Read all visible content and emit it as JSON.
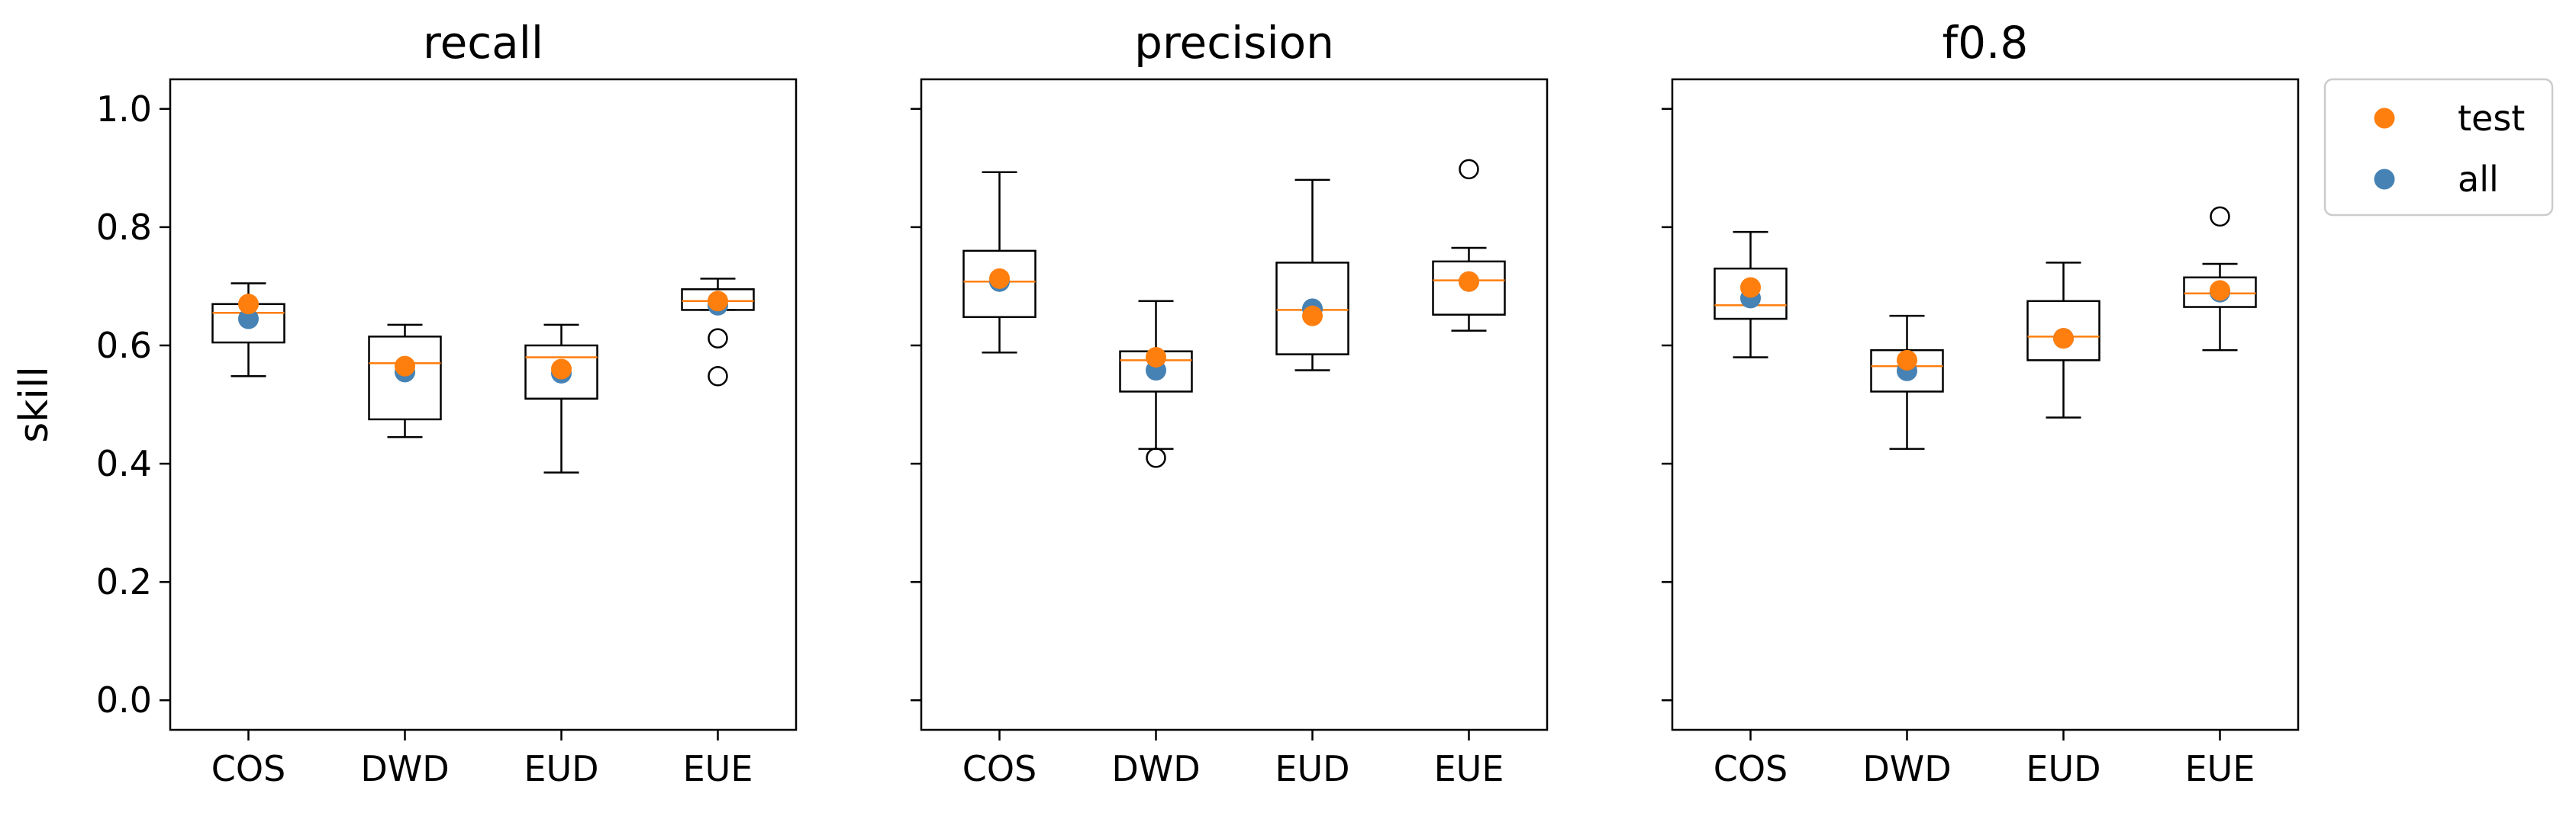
{
  "chart_data": {
    "type": "box",
    "shared_ylabel": "skill",
    "ylim": [
      -0.05,
      1.05
    ],
    "yticks": [
      0.0,
      0.2,
      0.4,
      0.6,
      0.8,
      1.0
    ],
    "ytick_labels": [
      "0.0",
      "0.2",
      "0.4",
      "0.6",
      "0.8",
      "1.0"
    ],
    "categories": [
      "COS",
      "DWD",
      "EUD",
      "EUE"
    ],
    "legend": {
      "location": "upper-right-outside",
      "items": [
        {
          "label": "test",
          "color": "#ff7f0e"
        },
        {
          "label": "all",
          "color": "#4682b4"
        }
      ]
    },
    "colors": {
      "median": "#ff7f0e",
      "test": "#ff7f0e",
      "all": "#4682b4",
      "box": "#000000"
    },
    "panels": [
      {
        "title": "recall",
        "boxes": [
          {
            "category": "COS",
            "whislo": 0.548,
            "q1": 0.605,
            "median": 0.655,
            "q3": 0.67,
            "whishi": 0.705,
            "fliers": [],
            "test": 0.67,
            "all": 0.645
          },
          {
            "category": "DWD",
            "whislo": 0.445,
            "q1": 0.475,
            "median": 0.57,
            "q3": 0.615,
            "whishi": 0.635,
            "fliers": [],
            "test": 0.565,
            "all": 0.555
          },
          {
            "category": "EUD",
            "whislo": 0.385,
            "q1": 0.51,
            "median": 0.58,
            "q3": 0.6,
            "whishi": 0.635,
            "fliers": [],
            "test": 0.56,
            "all": 0.553
          },
          {
            "category": "EUE",
            "whislo": 0.66,
            "q1": 0.66,
            "median": 0.675,
            "q3": 0.695,
            "whishi": 0.713,
            "fliers": [
              0.612,
              0.548
            ],
            "test": 0.675,
            "all": 0.668
          }
        ]
      },
      {
        "title": "precision",
        "boxes": [
          {
            "category": "COS",
            "whislo": 0.588,
            "q1": 0.648,
            "median": 0.708,
            "q3": 0.76,
            "whishi": 0.893,
            "fliers": [],
            "test": 0.713,
            "all": 0.708
          },
          {
            "category": "DWD",
            "whislo": 0.425,
            "q1": 0.522,
            "median": 0.575,
            "q3": 0.59,
            "whishi": 0.675,
            "fliers": [
              0.41
            ],
            "test": 0.58,
            "all": 0.558
          },
          {
            "category": "EUD",
            "whislo": 0.558,
            "q1": 0.585,
            "median": 0.66,
            "q3": 0.74,
            "whishi": 0.88,
            "fliers": [],
            "test": 0.65,
            "all": 0.662
          },
          {
            "category": "EUE",
            "whislo": 0.625,
            "q1": 0.652,
            "median": 0.71,
            "q3": 0.742,
            "whishi": 0.765,
            "fliers": [
              0.898
            ],
            "test": 0.708,
            "all": 0.708
          }
        ]
      },
      {
        "title": "f0.8",
        "boxes": [
          {
            "category": "COS",
            "whislo": 0.58,
            "q1": 0.645,
            "median": 0.668,
            "q3": 0.73,
            "whishi": 0.792,
            "fliers": [],
            "test": 0.698,
            "all": 0.68
          },
          {
            "category": "DWD",
            "whislo": 0.425,
            "q1": 0.522,
            "median": 0.565,
            "q3": 0.592,
            "whishi": 0.65,
            "fliers": [],
            "test": 0.575,
            "all": 0.557
          },
          {
            "category": "EUD",
            "whislo": 0.478,
            "q1": 0.575,
            "median": 0.615,
            "q3": 0.675,
            "whishi": 0.74,
            "fliers": [],
            "test": 0.612,
            "all": 0.612
          },
          {
            "category": "EUE",
            "whislo": 0.592,
            "q1": 0.665,
            "median": 0.688,
            "q3": 0.715,
            "whishi": 0.738,
            "fliers": [
              0.818
            ],
            "test": 0.693,
            "all": 0.69
          }
        ]
      }
    ]
  }
}
